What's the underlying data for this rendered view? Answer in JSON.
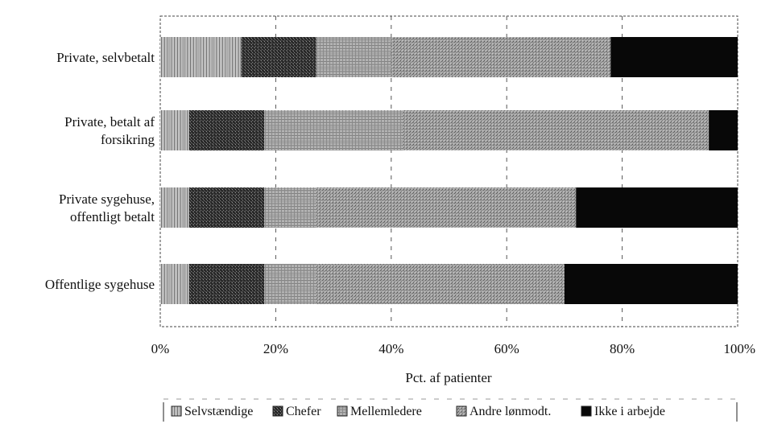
{
  "chart_data": {
    "type": "bar",
    "orientation": "horizontal",
    "stacked": "percent",
    "categories": [
      [
        "Private, selvbetalt"
      ],
      [
        "Private, betalt af",
        "forsikring"
      ],
      [
        "Private sygehuse,",
        "offentligt betalt"
      ],
      [
        "Offentlige sygehuse"
      ]
    ],
    "series": [
      {
        "name": "Selvstændige",
        "values": [
          14,
          5,
          5,
          5
        ],
        "color": "#b5b5b5"
      },
      {
        "name": "Chefer",
        "values": [
          13,
          13,
          13,
          13
        ],
        "color": "#4a4a4a"
      },
      {
        "name": "Mellemledere",
        "values": [
          13,
          24,
          9,
          9
        ],
        "color": "#a3a3a3"
      },
      {
        "name": "Andre lønmodt.",
        "values": [
          38,
          53,
          45,
          43
        ],
        "color": "#8d8d8d"
      },
      {
        "name": "Ikke i arbejde",
        "values": [
          22,
          5,
          28,
          30
        ],
        "color": "#080808"
      }
    ],
    "xlabel": "Pct. af patienter",
    "xticks": [
      "0%",
      "20%",
      "40%",
      "60%",
      "80%",
      "100%"
    ],
    "xlim": [
      0,
      100
    ],
    "grid": true,
    "legend": "bottom"
  }
}
